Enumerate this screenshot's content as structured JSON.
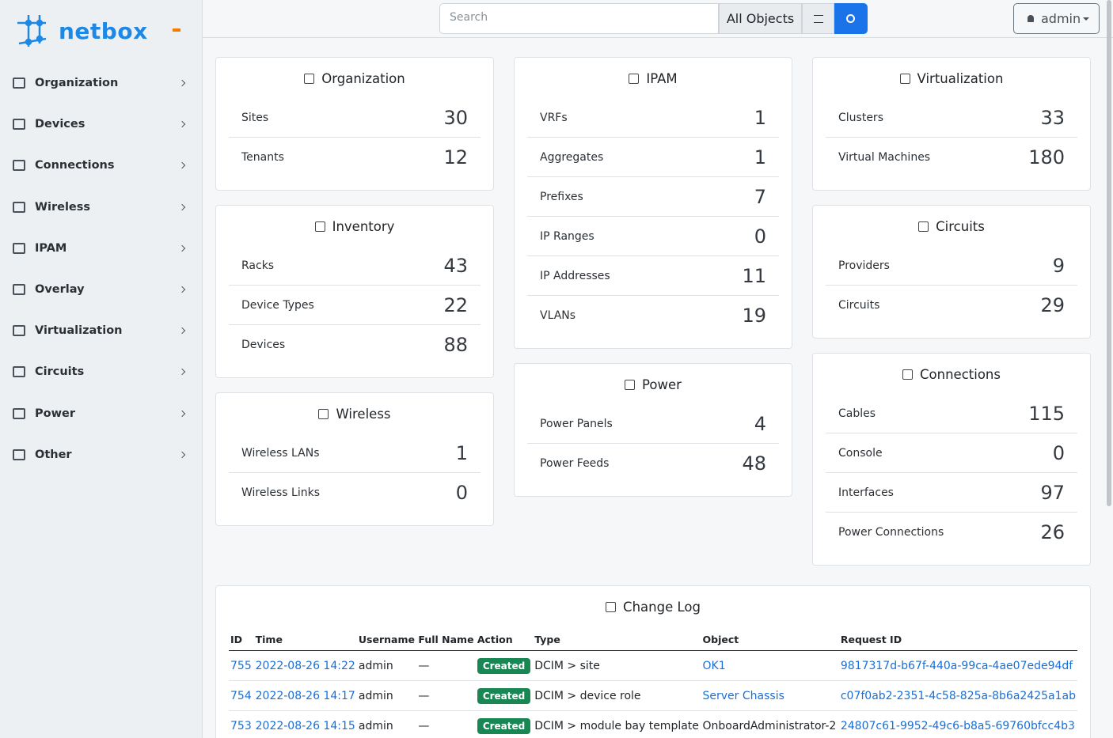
{
  "sidebar": {
    "brand": "netbox",
    "menu": [
      "Organization",
      "Devices",
      "Connections",
      "Wireless",
      "IPAM",
      "Overlay",
      "Virtualization",
      "Circuits",
      "Power",
      "Other"
    ]
  },
  "header": {
    "search_placeholder": "Search",
    "object_filter": "All Objects",
    "user": "admin"
  },
  "card_columns": [
    [
      {
        "title": "Organization",
        "rows": [
          {
            "label": "Sites",
            "count": 30
          },
          {
            "label": "Tenants",
            "count": 12
          }
        ]
      },
      {
        "title": "Inventory",
        "rows": [
          {
            "label": "Racks",
            "count": 43
          },
          {
            "label": "Device Types",
            "count": 22
          },
          {
            "label": "Devices",
            "count": 88
          }
        ]
      },
      {
        "title": "Wireless",
        "rows": [
          {
            "label": "Wireless LANs",
            "count": 1
          },
          {
            "label": "Wireless Links",
            "count": 0
          }
        ]
      }
    ],
    [
      {
        "title": "IPAM",
        "rows": [
          {
            "label": "VRFs",
            "count": 1
          },
          {
            "label": "Aggregates",
            "count": 1
          },
          {
            "label": "Prefixes",
            "count": 7
          },
          {
            "label": "IP Ranges",
            "count": 0
          },
          {
            "label": "IP Addresses",
            "count": 11
          },
          {
            "label": "VLANs",
            "count": 19
          }
        ]
      },
      {
        "title": "Power",
        "rows": [
          {
            "label": "Power Panels",
            "count": 4
          },
          {
            "label": "Power Feeds",
            "count": 48
          }
        ]
      }
    ],
    [
      {
        "title": "Virtualization",
        "rows": [
          {
            "label": "Clusters",
            "count": 33
          },
          {
            "label": "Virtual Machines",
            "count": 180
          }
        ]
      },
      {
        "title": "Circuits",
        "rows": [
          {
            "label": "Providers",
            "count": 9
          },
          {
            "label": "Circuits",
            "count": 29
          }
        ]
      },
      {
        "title": "Connections",
        "rows": [
          {
            "label": "Cables",
            "count": 115
          },
          {
            "label": "Console",
            "count": 0
          },
          {
            "label": "Interfaces",
            "count": 97
          },
          {
            "label": "Power Connections",
            "count": 26
          }
        ]
      }
    ]
  ],
  "changelog": {
    "title": "Change Log",
    "columns": [
      "ID",
      "Time",
      "Username",
      "Full Name",
      "Action",
      "Type",
      "Object",
      "Request ID"
    ],
    "rows": [
      [
        755,
        "2022-08-26 14:22",
        "admin",
        "—",
        "Created",
        "DCIM > site",
        "OK1",
        "9817317d-b67f-440a-99ca-4ae07ede94df"
      ],
      [
        754,
        "2022-08-26 14:17",
        "admin",
        "—",
        "Created",
        "DCIM > device role",
        "Server Chassis",
        "c07f0ab2-2351-4c58-825a-8b6a2425a1ab"
      ],
      [
        753,
        "2022-08-26 14:15",
        "admin",
        "—",
        "Created",
        "DCIM > module bay template",
        "OnboardAdministrator-2",
        "24807c61-9952-49c6-b8a5-69760bfcc4b3"
      ]
    ]
  }
}
